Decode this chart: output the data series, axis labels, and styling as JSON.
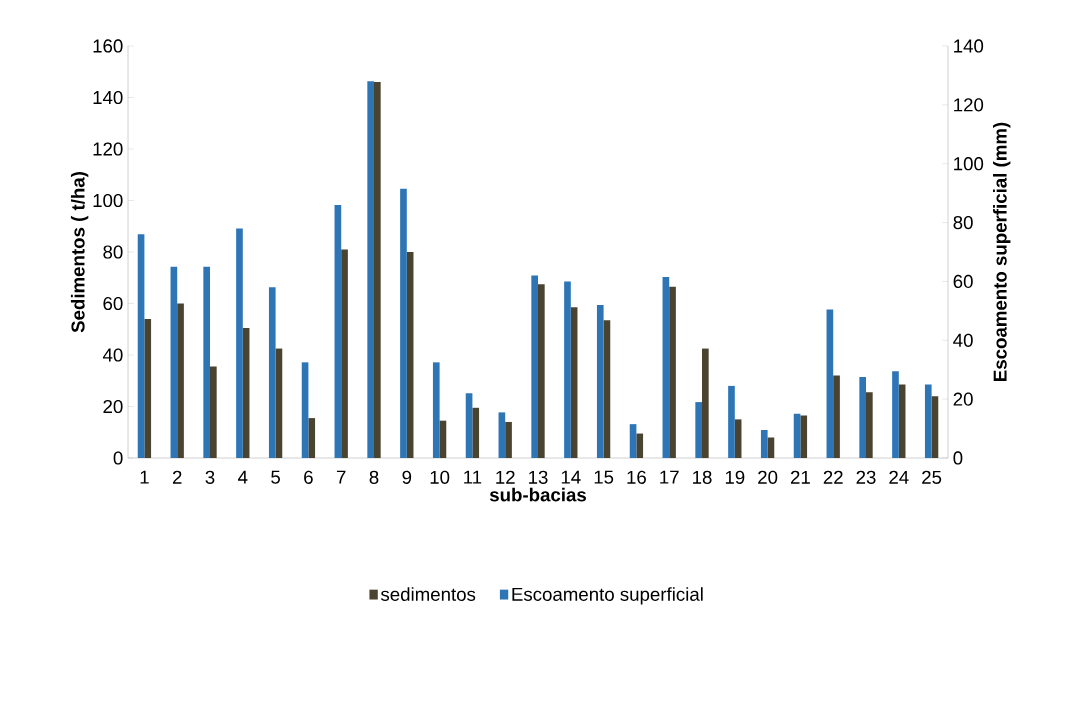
{
  "chart_data": {
    "type": "bar",
    "xlabel": "sub-bacias",
    "ylabel": "Sedimentos ( t/ha)",
    "y2label": "Escoamento superficial (mm)",
    "categories": [
      "1",
      "2",
      "3",
      "4",
      "5",
      "6",
      "7",
      "8",
      "9",
      "10",
      "11",
      "12",
      "13",
      "14",
      "15",
      "16",
      "17",
      "18",
      "19",
      "20",
      "21",
      "22",
      "23",
      "24",
      "25"
    ],
    "series": [
      {
        "name": "sedimentos",
        "color": "#4a4330",
        "values": [
          54,
          60,
          35.5,
          50.5,
          42.5,
          15.5,
          81,
          146,
          80,
          14.5,
          19.5,
          14,
          67.5,
          58.5,
          53.5,
          9.5,
          66.5,
          42.5,
          15,
          8,
          16.5,
          32,
          25.5,
          28.5,
          24
        ]
      },
      {
        "name": "Escoamento superficial",
        "color": "#2e75b6",
        "axis": "y2",
        "values": [
          76,
          65,
          65,
          78,
          58,
          32.5,
          86,
          128,
          91.5,
          32.5,
          22,
          15.5,
          62,
          60,
          52,
          11.5,
          61.5,
          19,
          24.5,
          9.5,
          15,
          50.5,
          27.5,
          29.5,
          25
        ]
      }
    ],
    "ylim": [
      0,
      160
    ],
    "yticks": [
      0,
      20,
      40,
      60,
      80,
      100,
      120,
      140,
      160
    ],
    "y2lim": [
      0,
      140
    ],
    "y2ticks": [
      0,
      20,
      40,
      60,
      80,
      100,
      120,
      140
    ],
    "legend": "bottom",
    "grid": false
  }
}
